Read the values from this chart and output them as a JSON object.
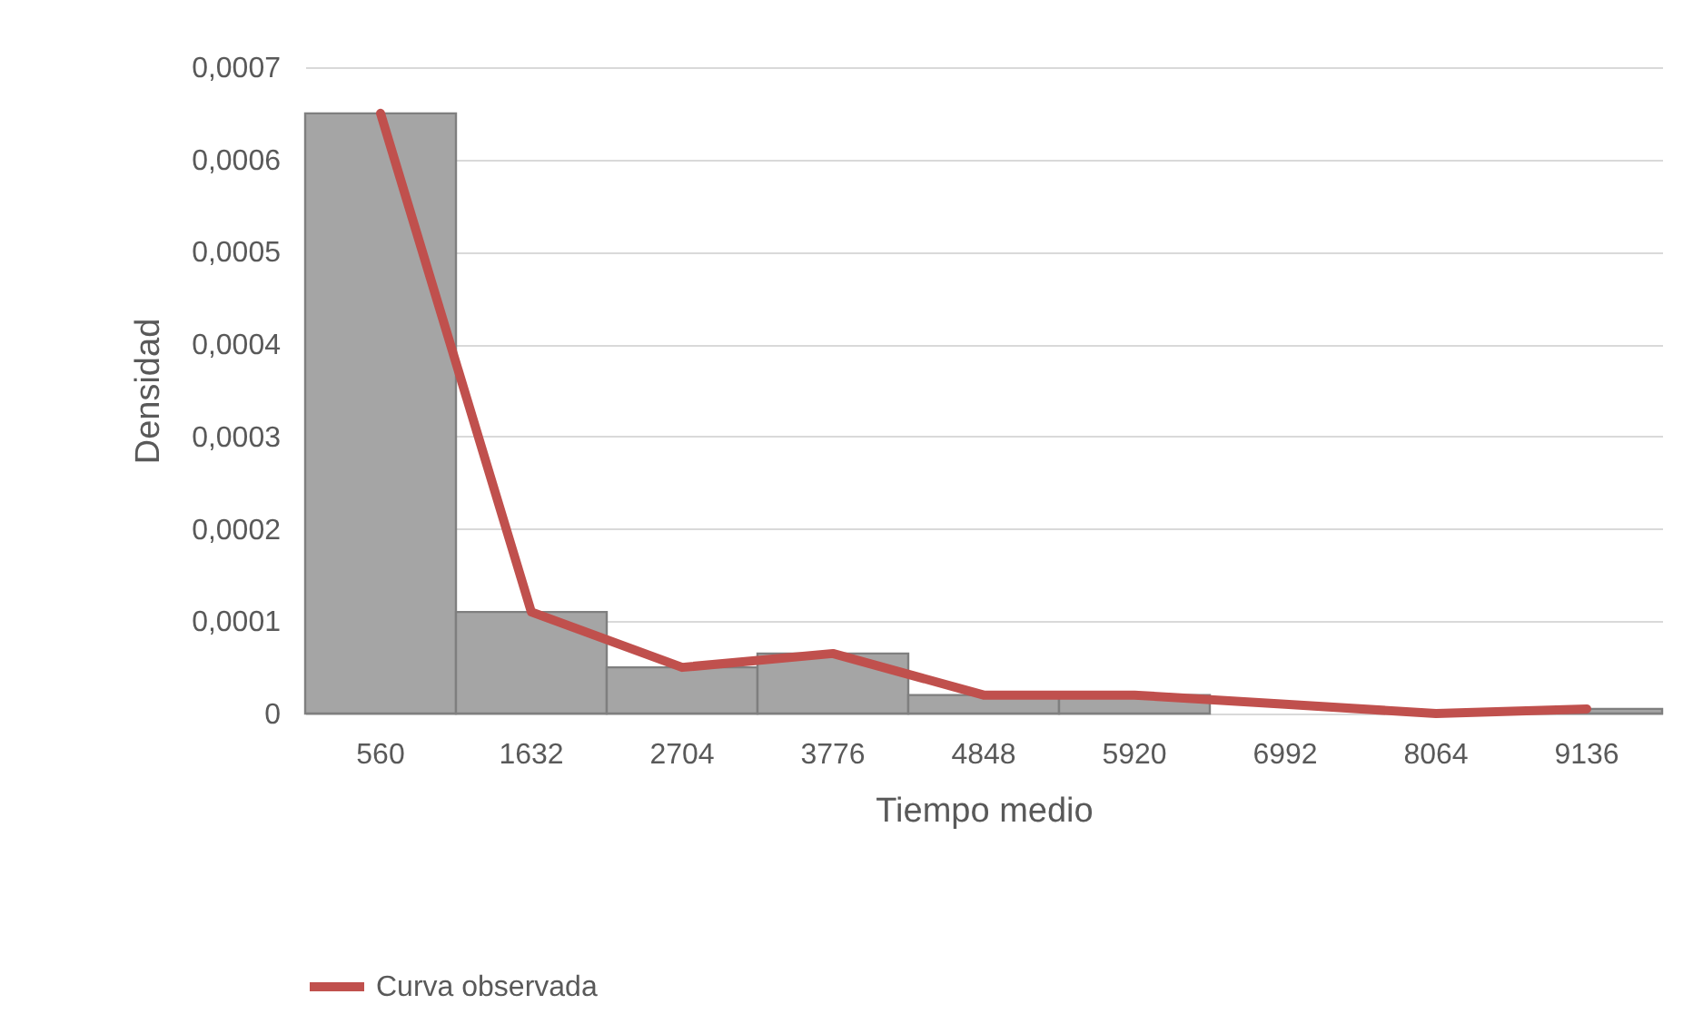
{
  "chart_data": {
    "type": "bar",
    "categories": [
      "560",
      "1632",
      "2704",
      "3776",
      "4848",
      "5920",
      "6992",
      "8064",
      "9136"
    ],
    "xlabel": "Tiempo medio",
    "ylabel": "Densidad",
    "series": [
      {
        "color": "#a5a5a5",
        "values": [
          0.00065,
          0.00011,
          5e-05,
          6.5e-05,
          2e-05,
          2e-05,
          0,
          0,
          5e-06
        ]
      },
      {
        "type": "line",
        "name": "Curva observada",
        "color": "#c0504d",
        "values": [
          0.00065,
          0.00011,
          5e-05,
          6.5e-05,
          2e-05,
          2e-05,
          1e-05,
          0,
          5e-06
        ]
      }
    ],
    "ylim": [
      0,
      0.0007
    ],
    "yticks": [
      0,
      {
        "value": 0.0001,
        "label": "0,0001"
      },
      {
        "value": 0.0002,
        "label": "0,0002"
      },
      {
        "value": 0.0003,
        "label": "0,0003"
      },
      {
        "value": 0.0004,
        "label": "0,0004"
      },
      {
        "value": 0.0005,
        "label": "0,0005"
      },
      {
        "value": 0.0006,
        "label": "0,0006"
      },
      {
        "value": 0.0007,
        "label": "0,0007"
      }
    ],
    "grid": "y",
    "legend": "bottom"
  }
}
